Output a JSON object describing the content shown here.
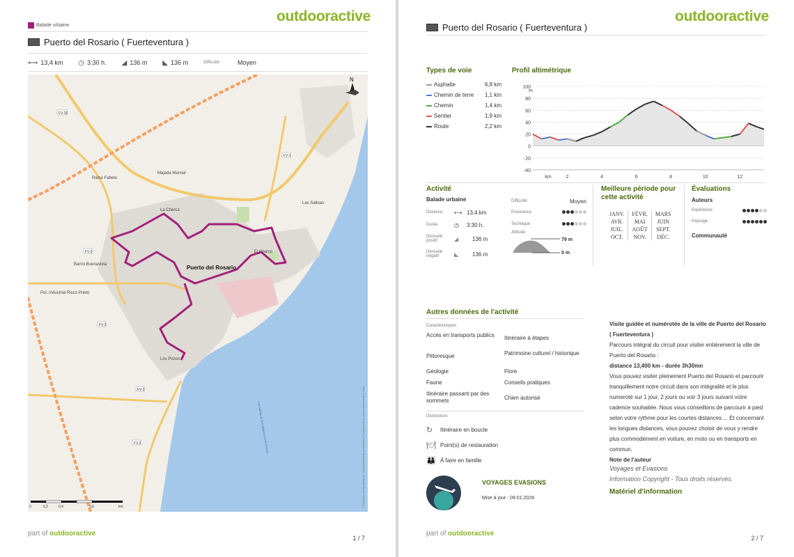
{
  "brand": "outdooractive",
  "page1": {
    "category": "Balade urbaine",
    "title": "Puerto del Rosario ( Fuerteventura )",
    "stats": {
      "distance": "13,4 km",
      "duration": "3:30 h.",
      "ascent": "136 m",
      "descent": "136 m",
      "difficulty_label": "Difficulté",
      "difficulty_value": "Moyen"
    },
    "map": {
      "places": [
        "Ramo Fabelo",
        "Majada Marcial",
        "La Charca",
        "Las Salinas",
        "El Charco",
        "Barrio Buenavista",
        "Puerto del Rosario",
        "Pol. Industrial Risco Prieto",
        "Los Pozos"
      ],
      "roads": [
        "FV-3",
        "FV-2",
        "FV-1",
        "FV-20",
        "FV-3",
        "FV-2"
      ],
      "north": "N",
      "scale": [
        "0",
        "0,2",
        "0,4",
        "0,6",
        "km"
      ],
      "copyright": "Données cartographiques: OpenStreetMap contributors | Outdooractive (www.outdooractive.com)",
      "sea_label": "Las Salinas de San Miguel Puerto Rosario"
    },
    "footer_prefix": "part of",
    "footer_brand": "outdooractive",
    "page_number": "1 / 7"
  },
  "page2": {
    "title": "Puerto del Rosario ( Fuerteventura )",
    "types_title": "Types de voie",
    "types": [
      {
        "name": "Asphalte",
        "value": "6,8 km",
        "color": "#999999"
      },
      {
        "name": "Chemin de terre",
        "value": "1,1 km",
        "color": "#5577cc"
      },
      {
        "name": "Chemin",
        "value": "1,4 km",
        "color": "#55aa44"
      },
      {
        "name": "Sentier",
        "value": "1,9 km",
        "color": "#dd5555"
      },
      {
        "name": "Route",
        "value": "2,2 km",
        "color": "#333333"
      }
    ],
    "profile": {
      "title": "Profil altimétrique",
      "unit_y": "m",
      "yticks": [
        "100",
        "80",
        "60",
        "40",
        "20",
        "0",
        "-20",
        "-40"
      ],
      "unit_x": "km",
      "xticks": [
        "2",
        "4",
        "6",
        "8",
        "10",
        "12"
      ],
      "points": [
        [
          0,
          20
        ],
        [
          0.5,
          12
        ],
        [
          1,
          15
        ],
        [
          1.5,
          10
        ],
        [
          2,
          12
        ],
        [
          2.5,
          8
        ],
        [
          3,
          14
        ],
        [
          3.5,
          18
        ],
        [
          4,
          24
        ],
        [
          4.5,
          32
        ],
        [
          5,
          40
        ],
        [
          5.5,
          52
        ],
        [
          6,
          62
        ],
        [
          6.5,
          70
        ],
        [
          7,
          75
        ],
        [
          7.5,
          68
        ],
        [
          8,
          60
        ],
        [
          8.5,
          50
        ],
        [
          9,
          38
        ],
        [
          9.5,
          25
        ],
        [
          10,
          18
        ],
        [
          10.5,
          12
        ],
        [
          11,
          14
        ],
        [
          11.5,
          16
        ],
        [
          12,
          20
        ],
        [
          12.5,
          38
        ],
        [
          13,
          32
        ],
        [
          13.4,
          28
        ]
      ]
    },
    "activity": {
      "title": "Activité",
      "name": "Balade urbaine",
      "distance_label": "Distance",
      "distance": "13,4 km",
      "duration_label": "Durée",
      "duration": "3:30 h.",
      "ascent_label": "Dénivelé positif",
      "ascent": "136 m",
      "descent_label": "Dénivelé négatif",
      "descent": "136 m",
      "difficulty_label": "Difficulté",
      "difficulty": "Moyen",
      "endurance_label": "Endurance",
      "endurance_level": 3,
      "technique_label": "Technique",
      "technique_level": 3,
      "altitude_label": "Altitude",
      "alt_max": "79 m",
      "alt_min": "0 m"
    },
    "season": {
      "title": "Meilleure période pour cette activité",
      "months": [
        [
          "JANV.",
          "FÉVR.",
          "MARS"
        ],
        [
          "AVR.",
          "MAI",
          "JUIN"
        ],
        [
          "JUIL.",
          "AOÛT",
          "SEPT."
        ],
        [
          "OCT.",
          "NOV.",
          "DÉC."
        ]
      ]
    },
    "ratings": {
      "title": "Évaluations",
      "authors": "Auteurs",
      "experience_label": "Expérience",
      "experience_level": 4,
      "landscape_label": "Paysage",
      "landscape_level": 6,
      "community": "Communauté"
    },
    "other": {
      "title": "Autres données de l'activité",
      "characteristics_label": "Caractéristiques",
      "left": [
        "Accès en transports publics",
        "Pittoresque",
        "Géologie",
        "Faune",
        "Itinéraire passant par des sommets"
      ],
      "right": [
        "Itinéraire à étapes",
        "Patrimoine culturel / historique",
        "Flore",
        "Conseils pratiques",
        "Chien autorisé"
      ],
      "distinctions_label": "Distinctions",
      "distinctions": [
        "Itinéraire en boucle",
        "Point(s) de restauration",
        "À faire en famille"
      ]
    },
    "author": {
      "name": "VOYAGES EVASIONS",
      "updated": "Mise à jour : 09.01.2026"
    },
    "description": {
      "heading": "Visite guidée et numérotée de la ville de Puerto del Rosario ( Fuerteventura )",
      "p1": "Parcours intégral du circuit pour visiter entièrement la ville de Puerto del Rosario :",
      "p2": "distance 13,400 km - durée 3h30mn",
      "p3": " Vous pouvez visiter pleinement Puerto del Rosario et parcourir tranquillement notre circuit dans son intégralité et le plus numeroté sur 1 jour, 2 jours ou voir 3 jours suivant votre cadence souhaitée. Nous vous conseillons de parcourir à pied selon votre rythme pour les courtes distances ... Et concernant les longues distances, vous pouvez choisir de vous y rendre plus commodément en voiture, en moto ou en transports en commun.",
      "note_label": "Note de l'auteur",
      "note_author": "Voyages et Evasions",
      "copyright": "Information Copyright - Tous droits réservés.",
      "material": "Matériel d'information"
    },
    "footer_prefix": "part of",
    "footer_brand": "outdooractive",
    "page_number": "2 / 7"
  }
}
